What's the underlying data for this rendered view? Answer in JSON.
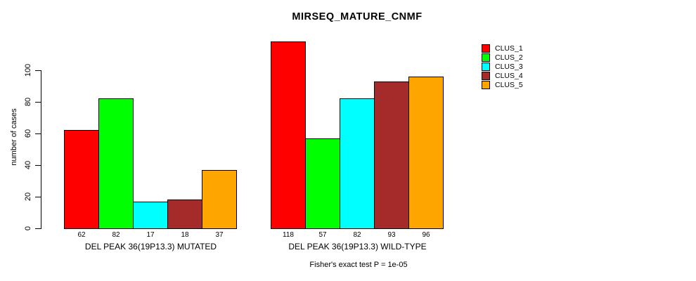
{
  "chart_data": {
    "type": "bar",
    "title": "MIRSEQ_MATURE_CNMF",
    "ylabel": "number of cases",
    "xlabel": "",
    "yticks": [
      0,
      20,
      40,
      60,
      80,
      100
    ],
    "ylim": [
      0,
      120
    ],
    "grid": false,
    "legend_position": "top-right",
    "series": [
      {
        "name": "CLUS_1",
        "color": "#FF0000"
      },
      {
        "name": "CLUS_2",
        "color": "#00FF00"
      },
      {
        "name": "CLUS_3",
        "color": "#00FFFF"
      },
      {
        "name": "CLUS_4",
        "color": "#A52A2A"
      },
      {
        "name": "CLUS_5",
        "color": "#FFA500"
      }
    ],
    "groups": [
      {
        "label": "DEL PEAK 36(19P13.3) MUTATED",
        "values": [
          62,
          82,
          17,
          18,
          37
        ]
      },
      {
        "label": "DEL PEAK 36(19P13.3) WILD-TYPE",
        "values": [
          118,
          57,
          82,
          93,
          96
        ]
      }
    ],
    "bar_value_labels_shown": true,
    "annotation": "Fisher's exact test P = 1e-05"
  }
}
